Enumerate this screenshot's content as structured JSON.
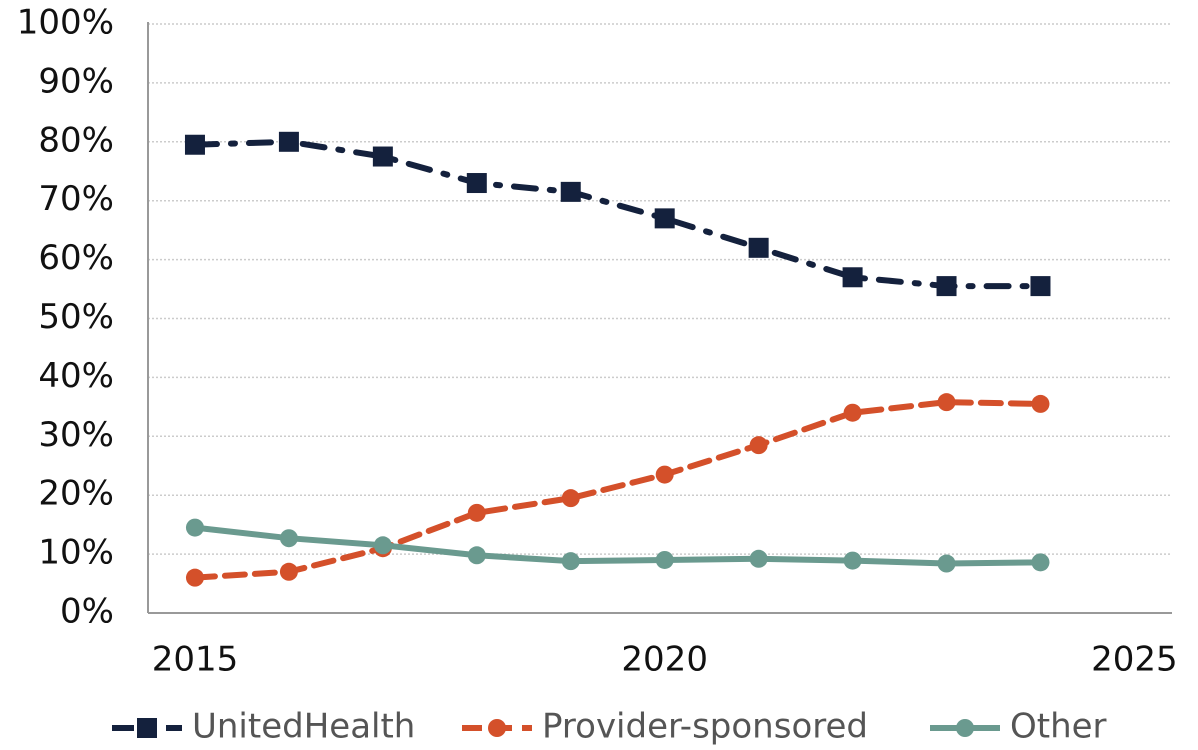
{
  "chart_data": {
    "type": "line",
    "x": [
      2015,
      2016,
      2017,
      2018,
      2019,
      2020,
      2021,
      2022,
      2023,
      2024
    ],
    "series": [
      {
        "name": "UnitedHealth",
        "color": "#14213d",
        "dash": "dashdot",
        "marker": "square",
        "values": [
          79.5,
          80,
          77.5,
          73,
          71.5,
          67,
          62,
          57,
          55.5,
          55.5
        ]
      },
      {
        "name": "Provider-sponsored",
        "color": "#d4502a",
        "dash": "dashed",
        "marker": "circle",
        "values": [
          6,
          7,
          11,
          17,
          19.5,
          23.5,
          28.5,
          34,
          35.8,
          35.5
        ]
      },
      {
        "name": "Other",
        "color": "#6a9a8f",
        "dash": "solid",
        "marker": "circle",
        "values": [
          14.5,
          12.7,
          11.5,
          9.8,
          8.8,
          9,
          9.2,
          8.9,
          8.4,
          8.6
        ]
      }
    ],
    "xlim": [
      2014.5,
      2025.4
    ],
    "xticks": [
      2015,
      2020,
      2025
    ],
    "ylim": [
      0,
      100
    ],
    "yticks": [
      {
        "value": 0,
        "label": "0%"
      },
      {
        "value": 10,
        "label": "10%"
      },
      {
        "value": 20,
        "label": "20%"
      },
      {
        "value": 30,
        "label": "30%"
      },
      {
        "value": 40,
        "label": "40%"
      },
      {
        "value": 50,
        "label": "50%"
      },
      {
        "value": 60,
        "label": "60%"
      },
      {
        "value": 70,
        "label": "70%"
      },
      {
        "value": 80,
        "label": "80%"
      },
      {
        "value": 90,
        "label": "90%"
      },
      {
        "value": 100,
        "label": "100%"
      }
    ],
    "grid": true,
    "legend": "bottom"
  }
}
